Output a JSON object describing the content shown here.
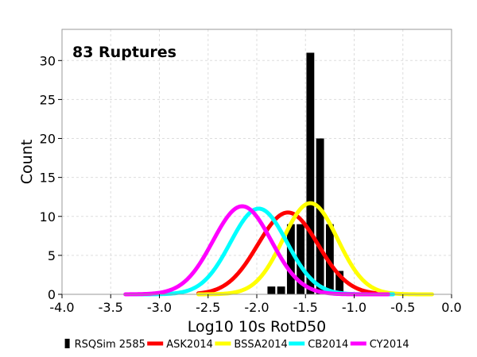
{
  "chart_data": {
    "type": "bar",
    "annotation": "83 Ruptures",
    "xlabel": "Log10 10s RotD50",
    "ylabel": "Count",
    "xlim": [
      -4.0,
      0.0
    ],
    "ylim": [
      0,
      34
    ],
    "xticks": [
      -4.0,
      -3.5,
      -3.0,
      -2.5,
      -2.0,
      -1.5,
      -1.0,
      -0.5,
      0.0
    ],
    "xtick_labels": [
      "-4.0",
      "-3.5",
      "-3.0",
      "-2.5",
      "-2.0",
      "-1.5",
      "-1.0",
      "-0.5",
      "0.0"
    ],
    "yticks": [
      0,
      5,
      10,
      15,
      20,
      25,
      30
    ],
    "ytick_labels": [
      "0",
      "5",
      "10",
      "15",
      "20",
      "25",
      "30"
    ],
    "grid": true,
    "legend_position": "bottom",
    "histogram": {
      "name": "RSQSim 2585",
      "color": "#000000",
      "bin_width": 0.1,
      "bin_centers": [
        -1.85,
        -1.75,
        -1.65,
        -1.55,
        -1.45,
        -1.35,
        -1.25,
        -1.15
      ],
      "counts": [
        1,
        1,
        9,
        9,
        31,
        20,
        9,
        3
      ]
    },
    "series": [
      {
        "name": "ASK2014",
        "color": "#ff0000",
        "mean": -1.68,
        "sigma": 0.31,
        "peak": 10.5,
        "x_range": [
          -2.6,
          -0.6
        ]
      },
      {
        "name": "BSSA2014",
        "color": "#ffff00",
        "mean": -1.45,
        "sigma": 0.28,
        "peak": 11.7,
        "x_range": [
          -2.6,
          -0.2
        ]
      },
      {
        "name": "CB2014",
        "color": "#00ffff",
        "mean": -1.98,
        "sigma": 0.29,
        "peak": 11.0,
        "x_range": [
          -3.3,
          -0.6
        ]
      },
      {
        "name": "CY2014",
        "color": "#ff00ff",
        "mean": -2.15,
        "sigma": 0.3,
        "peak": 11.3,
        "x_range": [
          -3.35,
          -0.65
        ]
      }
    ]
  }
}
